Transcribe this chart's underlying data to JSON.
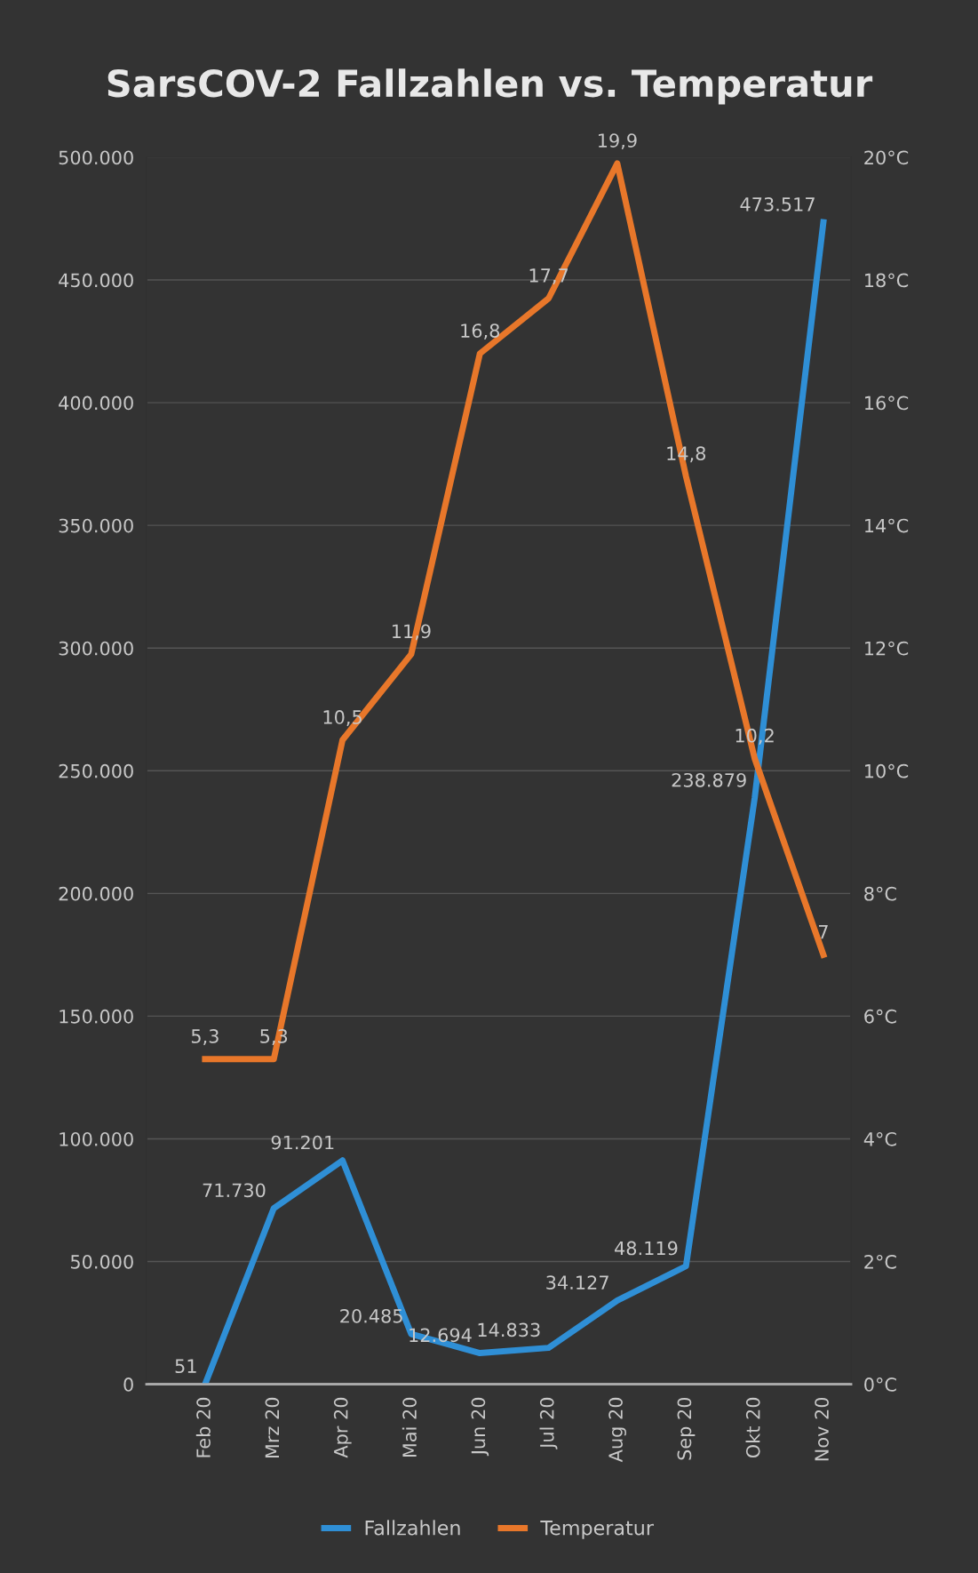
{
  "chart_data": {
    "type": "line",
    "title": "SarsCOV-2 Fallzahlen vs. Temperatur",
    "categories": [
      "Feb 20",
      "Mrz 20",
      "Apr 20",
      "Mai 20",
      "Jun 20",
      "Jul 20",
      "Aug 20",
      "Sep 20",
      "Okt 20",
      "Nov 20"
    ],
    "series": [
      {
        "name": "Fallzahlen",
        "color": "#2f8fd6",
        "values": [
          51,
          71730,
          91201,
          20485,
          12694,
          14833,
          34127,
          48119,
          238879,
          473517
        ],
        "value_labels": [
          "51",
          "71.730",
          "91.201",
          "20.485",
          "12.694",
          "14.833",
          "34.127",
          "48.119",
          "238.879",
          "473.517"
        ]
      },
      {
        "name": "Temperatur",
        "color": "#e8772a",
        "axis": "y2",
        "values": [
          5.3,
          5.3,
          10.5,
          11.9,
          16.8,
          17.7,
          19.9,
          14.8,
          10.2,
          7
        ],
        "value_labels": [
          "5,3",
          "5,3",
          "10,5",
          "11,9",
          "16,8",
          "17,7",
          "19,9",
          "14,8",
          "10,2",
          "7"
        ]
      }
    ],
    "ylim": [
      0,
      500000
    ],
    "yticks": [
      {
        "value": 0,
        "label": "0"
      },
      {
        "value": 50000,
        "label": "50.000"
      },
      {
        "value": 100000,
        "label": "100.000"
      },
      {
        "value": 150000,
        "label": "150.000"
      },
      {
        "value": 200000,
        "label": "200.000"
      },
      {
        "value": 250000,
        "label": "250.000"
      },
      {
        "value": 300000,
        "label": "300.000"
      },
      {
        "value": 350000,
        "label": "350.000"
      },
      {
        "value": 400000,
        "label": "400.000"
      },
      {
        "value": 450000,
        "label": "450.000"
      },
      {
        "value": 500000,
        "label": "500.000"
      }
    ],
    "y2lim": [
      0,
      20
    ],
    "y2ticks": [
      {
        "value": 0,
        "label": "0°C"
      },
      {
        "value": 2,
        "label": "2°C"
      },
      {
        "value": 4,
        "label": "4°C"
      },
      {
        "value": 6,
        "label": "6°C"
      },
      {
        "value": 8,
        "label": "8°C"
      },
      {
        "value": 10,
        "label": "10°C"
      },
      {
        "value": 12,
        "label": "12°C"
      },
      {
        "value": 14,
        "label": "14°C"
      },
      {
        "value": 16,
        "label": "16°C"
      },
      {
        "value": 18,
        "label": "18°C"
      },
      {
        "value": 20,
        "label": "20°C"
      }
    ],
    "grid": "y",
    "legend": "bottom",
    "marker": "none",
    "line_style": "solid"
  }
}
